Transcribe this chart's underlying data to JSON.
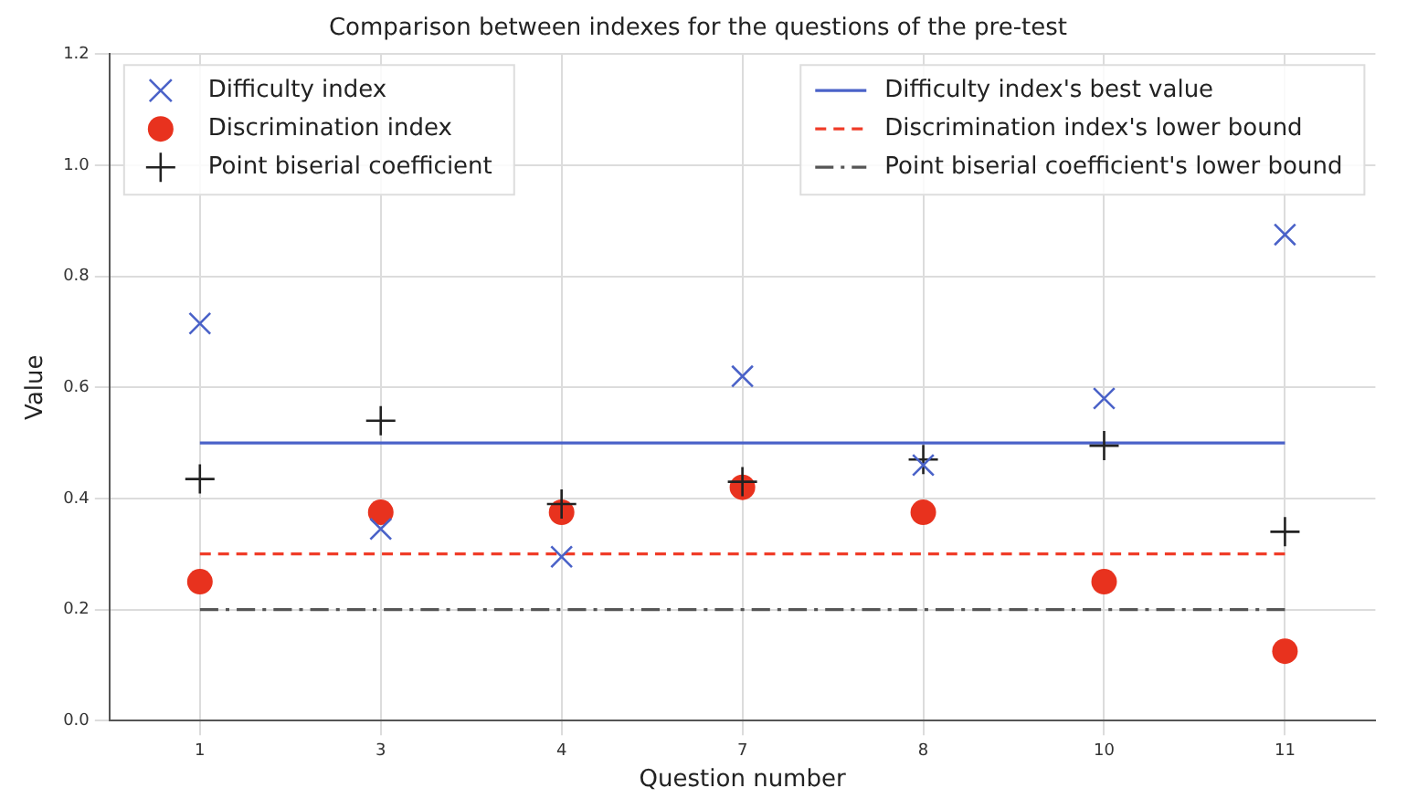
{
  "chart_data": {
    "type": "scatter",
    "title": "Comparison between indexes for the questions of the pre-test",
    "xlabel": "Question number",
    "ylabel": "Value",
    "categories": [
      "1",
      "3",
      "4",
      "7",
      "8",
      "10",
      "11"
    ],
    "series": [
      {
        "name": "Difficulty index",
        "type": "scatter",
        "marker": "cross_x",
        "color": "#4a62c8",
        "values": [
          0.715,
          0.345,
          0.295,
          0.62,
          0.46,
          0.58,
          0.875
        ]
      },
      {
        "name": "Discrimination index",
        "type": "scatter",
        "marker": "circle",
        "color": "#e8321e",
        "values": [
          0.25,
          0.375,
          0.375,
          0.42,
          0.375,
          0.25,
          0.125
        ]
      },
      {
        "name": "Point biserial coefficient",
        "type": "scatter",
        "marker": "cross",
        "color": "#222222",
        "values": [
          0.435,
          0.54,
          0.39,
          0.43,
          0.47,
          0.495,
          0.34
        ]
      },
      {
        "name": "Difficulty index's best value",
        "type": "line",
        "marker": "none",
        "line_style": "solid",
        "color": "#4a62c8",
        "values": [
          0.5,
          0.5,
          0.5,
          0.5,
          0.5,
          0.5,
          0.5
        ]
      },
      {
        "name": "Discrimination index's lower bound",
        "type": "line",
        "marker": "none",
        "line_style": "dashed",
        "color": "#f03c28",
        "values": [
          0.3,
          0.3,
          0.3,
          0.3,
          0.3,
          0.3,
          0.3
        ]
      },
      {
        "name": "Point biserial coefficient's lower bound",
        "type": "line",
        "marker": "none",
        "line_style": "dashdot",
        "color": "#555555",
        "values": [
          0.2,
          0.2,
          0.2,
          0.2,
          0.2,
          0.2,
          0.2
        ]
      }
    ],
    "ylim": [
      0,
      1.2
    ],
    "yticks": [
      {
        "value": 0,
        "label": "0.0"
      },
      {
        "value": 0.2,
        "label": "0.2"
      },
      {
        "value": 0.4,
        "label": "0.4"
      },
      {
        "value": 0.6,
        "label": "0.6"
      },
      {
        "value": 0.8,
        "label": "0.8"
      },
      {
        "value": 1,
        "label": "1.0"
      },
      {
        "value": 1.2,
        "label": "1.2"
      }
    ],
    "grid": true,
    "legend": "top"
  }
}
